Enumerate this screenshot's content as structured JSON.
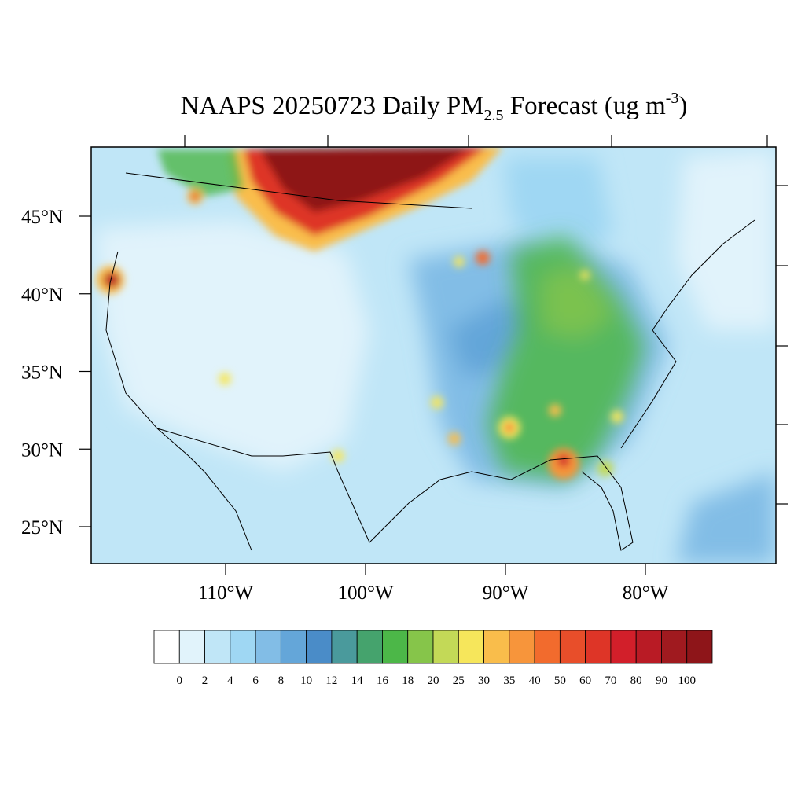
{
  "title": {
    "main": "NAAPS 20250723 Daily PM",
    "subscript": "2.5",
    "middle": " Forecast (ug m",
    "superscript": "-3",
    "end": ")"
  },
  "map": {
    "lat_ticks": [
      {
        "value": 45,
        "label": "45°N"
      },
      {
        "value": 40,
        "label": "40°N"
      },
      {
        "value": 35,
        "label": "35°N"
      },
      {
        "value": 30,
        "label": "30°N"
      },
      {
        "value": 25,
        "label": "25°N"
      }
    ],
    "lon_ticks": [
      {
        "value": -110,
        "label": "110°W"
      },
      {
        "value": -100,
        "label": "100°W"
      },
      {
        "value": -90,
        "label": "90°W"
      },
      {
        "value": -80,
        "label": "80°W"
      }
    ]
  },
  "colorbar": {
    "colors": [
      "#ffffff",
      "#e1f3fb",
      "#c0e6f7",
      "#9fd7f3",
      "#82bde6",
      "#64a6d9",
      "#4a8cc8",
      "#4a9a9c",
      "#45a36d",
      "#4cb748",
      "#86c54a",
      "#c3d957",
      "#f6e65b",
      "#f9bd4b",
      "#f7953b",
      "#f26b2d",
      "#e84e2a",
      "#de3527",
      "#d21f2a",
      "#b91b25",
      "#a01a1f",
      "#8e1519"
    ],
    "labels": [
      0,
      2,
      4,
      6,
      8,
      10,
      12,
      14,
      16,
      18,
      20,
      25,
      30,
      35,
      40,
      50,
      60,
      70,
      80,
      90,
      100
    ]
  }
}
